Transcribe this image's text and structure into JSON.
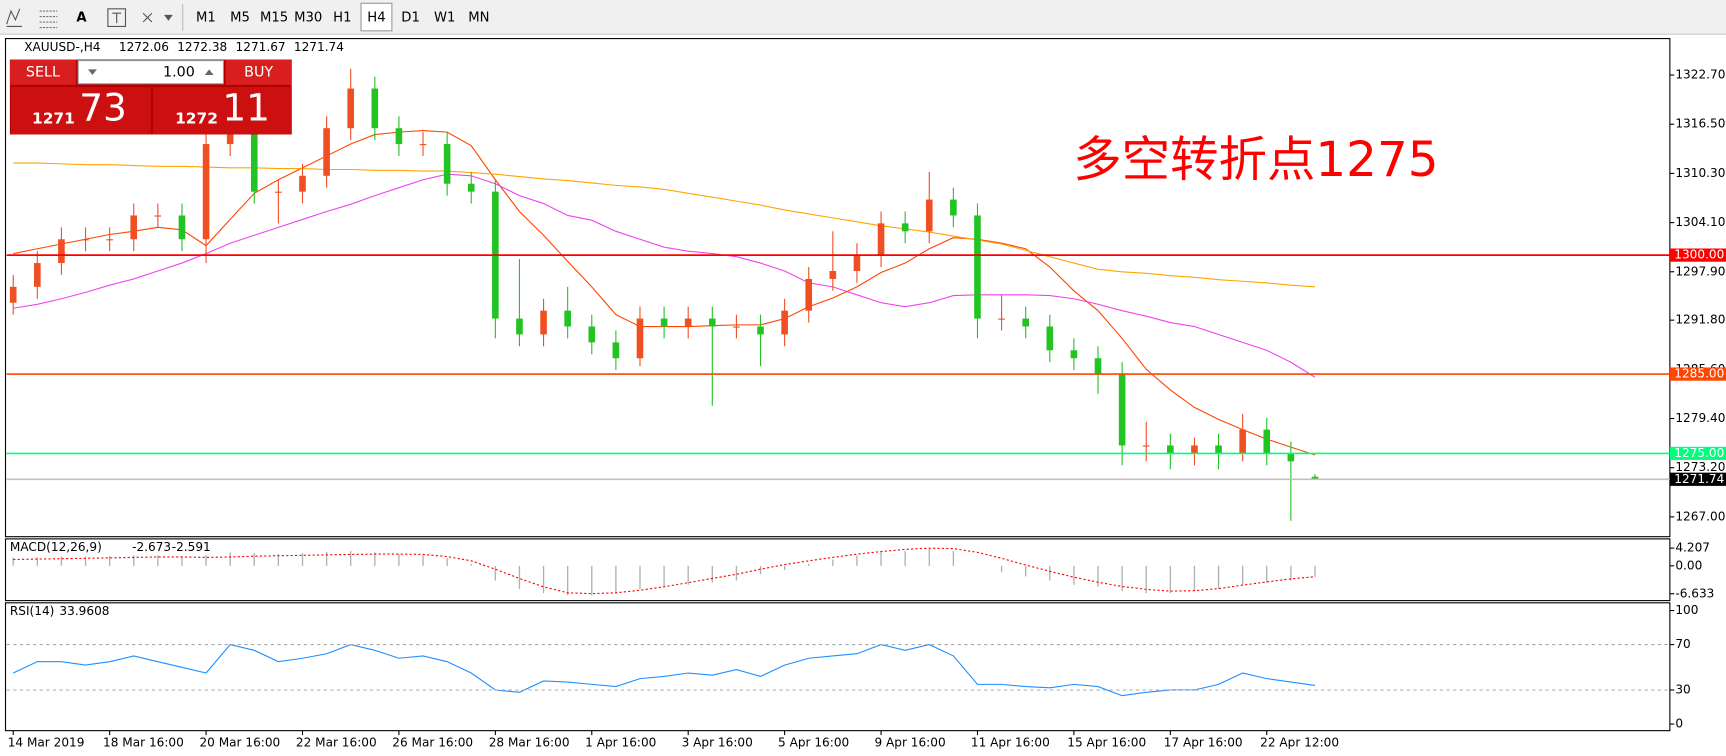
{
  "toolbar": {
    "timeframes": [
      "M1",
      "M5",
      "M15",
      "M30",
      "H1",
      "H4",
      "D1",
      "W1",
      "MN"
    ],
    "active": "H4",
    "tools": [
      "A"
    ]
  },
  "trade_panel": {
    "sell": "SELL",
    "buy": "BUY",
    "lot": "1.00",
    "sell_small": "1271",
    "sell_big": "73",
    "buy_small": "1272",
    "buy_big": "11"
  },
  "chart_data": {
    "type": "candlestick",
    "symbol": "XAUUSD-,H4",
    "annotation": "多空转折点1275",
    "x": [
      "14 Mar 2019",
      null,
      null,
      null,
      "18 Mar 16:00",
      null,
      null,
      null,
      "20 Mar 16:00",
      null,
      null,
      null,
      "22 Mar 16:00",
      null,
      null,
      null,
      "26 Mar 16:00",
      null,
      null,
      null,
      "28 Mar 16:00",
      null,
      null,
      null,
      "1 Apr 16:00",
      null,
      null,
      null,
      "3 Apr 16:00",
      null,
      null,
      null,
      "5 Apr 16:00",
      null,
      null,
      null,
      "9 Apr 16:00",
      null,
      null,
      null,
      "11 Apr 16:00",
      null,
      null,
      null,
      "15 Apr 16:00",
      null,
      null,
      null,
      "17 Apr 16:00",
      null,
      null,
      null,
      "22 Apr 12:00",
      null,
      null
    ],
    "open": [
      1294,
      1296,
      1299,
      1302,
      1302,
      1302,
      1305,
      1305,
      1302,
      1314,
      1316,
      1308,
      1308,
      1310,
      1316,
      1321,
      1316,
      1314,
      1314,
      1309,
      1308,
      1292,
      1290,
      1293,
      1291,
      1289,
      1287,
      1292,
      1291,
      1292,
      1291,
      1291,
      1290,
      1293,
      1297,
      1298,
      1300,
      1304,
      1303,
      1307,
      1305,
      1292,
      1292,
      1291,
      1288,
      1287,
      1285,
      1276,
      1276,
      1275,
      1276,
      1275,
      1278,
      1275,
      1272.06
    ],
    "high": [
      1297.5,
      1300.5,
      1303.5,
      1303.5,
      1303.5,
      1306.5,
      1306.5,
      1306.5,
      1315.5,
      1317.5,
      1317.5,
      1309.5,
      1311.5,
      1317.5,
      1323.5,
      1322.5,
      1317.5,
      1315.5,
      1315.5,
      1310.5,
      1309.5,
      1299.5,
      1294.5,
      1296,
      1292.5,
      1290.5,
      1293.5,
      1293.5,
      1293.5,
      1293.5,
      1292.5,
      1292.5,
      1294.5,
      1298.5,
      1303,
      1301.5,
      1305.5,
      1305.5,
      1310.5,
      1308.5,
      1306.5,
      1295,
      1293.5,
      1292.5,
      1289.5,
      1288.5,
      1286.5,
      1279,
      1277.5,
      1277,
      1277.5,
      1280,
      1279.5,
      1276.5,
      1272.38
    ],
    "low": [
      1292.5,
      1294.5,
      1297.5,
      1300.5,
      1300.5,
      1300.5,
      1303.5,
      1300.5,
      1299,
      1312.5,
      1306.5,
      1304,
      1306.5,
      1308.5,
      1314.5,
      1314.5,
      1312.5,
      1312.5,
      1307.5,
      1306.5,
      1289.5,
      1288.5,
      1288.5,
      1289.5,
      1287.5,
      1285.5,
      1286,
      1289.5,
      1289.5,
      1281,
      1289.5,
      1286,
      1288.5,
      1291.5,
      1295.5,
      1296.5,
      1298.5,
      1301.5,
      1301.5,
      1303.5,
      1289.5,
      1290.5,
      1289.5,
      1286.5,
      1285.5,
      1282.5,
      1273.5,
      1274,
      1273,
      1273.5,
      1273,
      1274,
      1273.5,
      1266.5,
      1271.67
    ],
    "close": [
      1296,
      1299,
      1302,
      1302,
      1302,
      1305,
      1305,
      1302,
      1314,
      1316,
      1308,
      1308,
      1310,
      1316,
      1321,
      1316,
      1314,
      1314,
      1309,
      1308,
      1292,
      1290,
      1293,
      1291,
      1289,
      1287,
      1292,
      1291,
      1292,
      1291,
      1291,
      1290,
      1293,
      1297,
      1298,
      1300,
      1304,
      1303,
      1307,
      1305,
      1292,
      1292,
      1291,
      1288,
      1287,
      1285,
      1276,
      1276,
      1275,
      1276,
      1275,
      1278,
      1275,
      1274,
      1271.74
    ],
    "up_color": "#f04e23",
    "down_color": "#22c322",
    "lines": [
      {
        "color": "#ff4500",
        "values": [
          1300.2,
          1300.8,
          1301.4,
          1302,
          1302.6,
          1303,
          1303.5,
          1303.2,
          1301.2,
          1304.5,
          1307.8,
          1309.5,
          1311,
          1312.5,
          1314,
          1315.2,
          1315.5,
          1315.7,
          1315.5,
          1313.8,
          1309.5,
          1305.5,
          1302.5,
          1299.2,
          1296,
          1292.5,
          1291,
          1291,
          1291,
          1291.1,
          1291.2,
          1291.2,
          1292,
          1293.5,
          1294.6,
          1296,
          1297.8,
          1299,
          1300.8,
          1302.2,
          1302,
          1301.5,
          1300.8,
          1298.5,
          1295.5,
          1293,
          1289.5,
          1285.6,
          1283,
          1280.8,
          1279.3,
          1278,
          1276.8,
          1275.8,
          1274.8
        ]
      },
      {
        "color": "#ee44ee",
        "values": [
          1293.3,
          1293.8,
          1294.5,
          1295.3,
          1296.2,
          1297,
          1298,
          1299,
          1300.2,
          1301.5,
          1302.5,
          1303.5,
          1304.5,
          1305.5,
          1306.4,
          1307.5,
          1308.5,
          1309.5,
          1310.2,
          1310,
          1309,
          1307.5,
          1306.5,
          1305,
          1304.4,
          1303,
          1302,
          1301,
          1300.5,
          1300.2,
          1299.8,
          1299,
          1298,
          1296.5,
          1296,
          1295,
          1294,
          1293.5,
          1294,
          1294.9,
          1295,
          1295,
          1295,
          1294.9,
          1294.5,
          1293.8,
          1293,
          1292.3,
          1291.5,
          1291,
          1290,
          1289,
          1288,
          1286.5,
          1284.6
        ]
      },
      {
        "color": "#ffa500",
        "values": [
          1311.6,
          1311.6,
          1311.5,
          1311.4,
          1311.4,
          1311.3,
          1311.2,
          1311.2,
          1311.1,
          1311,
          1311,
          1310.9,
          1310.9,
          1310.8,
          1310.8,
          1310.7,
          1310.7,
          1310.6,
          1310.6,
          1310.4,
          1310.2,
          1309.9,
          1309.6,
          1309.4,
          1309.1,
          1308.8,
          1308.6,
          1308.3,
          1307.8,
          1307.3,
          1306.8,
          1306.3,
          1305.7,
          1305.2,
          1304.7,
          1304.2,
          1303.7,
          1303.3,
          1302.9,
          1302.4,
          1301.9,
          1301.4,
          1300.6,
          1299.8,
          1299,
          1298.2,
          1297.9,
          1297.7,
          1297.4,
          1297.2,
          1296.9,
          1296.7,
          1296.5,
          1296.2,
          1296
        ]
      }
    ],
    "hlines": [
      {
        "value": 1300,
        "label": "1300.00",
        "color": "#ff0000",
        "box": "#ff0000"
      },
      {
        "value": 1285,
        "label": "1285.00",
        "color": "#ff4500",
        "box": "#ff4500"
      },
      {
        "value": 1275,
        "label": "1275.00",
        "color": "#00ff7f",
        "box": "#00ff7f"
      },
      {
        "value": 1271.74,
        "label": "1271.74",
        "color": "#c0c0c0",
        "box": "#000000"
      }
    ],
    "ylim": [
      1264.5,
      1327.3
    ],
    "yticks": [
      {
        "value": 1322.7,
        "label": "1322.70"
      },
      {
        "value": 1316.5,
        "label": "1316.50"
      },
      {
        "value": 1310.3,
        "label": "1310.30"
      },
      {
        "value": 1304.1,
        "label": "1304.10"
      },
      {
        "value": 1297.9,
        "label": "1297.90"
      },
      {
        "value": 1291.8,
        "label": "1291.80"
      },
      {
        "value": 1285.6,
        "label": "1285.60"
      },
      {
        "value": 1279.4,
        "label": "1279.40"
      },
      {
        "value": 1273.2,
        "label": "1273.20"
      },
      {
        "value": 1267,
        "label": "1267.00"
      }
    ],
    "macd": {
      "label": "MACD(12,26,9)",
      "color": "#b0b0b0",
      "signal_color": "#ff0000",
      "values": [
        2,
        2,
        2.2,
        2.2,
        2.3,
        2.5,
        2.5,
        2.3,
        2.6,
        3.2,
        3,
        2.8,
        3,
        3.3,
        3.5,
        3.2,
        2.8,
        2.5,
        1.8,
        0.5,
        -3.5,
        -5.5,
        -6.5,
        -7,
        -7,
        -6.5,
        -5.5,
        -5,
        -4.5,
        -4,
        -3.5,
        -2,
        -1,
        0.5,
        1.5,
        2.5,
        3.5,
        3.5,
        4,
        3.5,
        0,
        -1.5,
        -2.5,
        -3.5,
        -4.5,
        -5,
        -6,
        -6.5,
        -6.5,
        -6,
        -5.5,
        -4.5,
        -4,
        -3.5,
        -2.673
      ],
      "signal": [
        1.5,
        1.6,
        1.7,
        1.8,
        1.9,
        2,
        2.1,
        2.1,
        2,
        2.1,
        2.3,
        2.4,
        2.5,
        2.6,
        2.7,
        2.8,
        2.8,
        2.7,
        2.2,
        1.2,
        -0.8,
        -3,
        -5,
        -6.4,
        -6.6,
        -6.4,
        -5.8,
        -5,
        -4,
        -3,
        -2,
        -0.8,
        0.3,
        1.2,
        2,
        2.8,
        3.4,
        3.9,
        4.2,
        4.1,
        3.2,
        1.8,
        0.2,
        -1.3,
        -2.7,
        -3.9,
        -4.9,
        -5.6,
        -6,
        -5.9,
        -5.4,
        -4.6,
        -3.8,
        -3.1,
        -2.591
      ],
      "ylim": [
        -8.26,
        6.4
      ],
      "yticks": [
        4.207,
        {
          "value": 0,
          "label": "0.00"
        },
        -6.633
      ]
    },
    "rsi": {
      "label": "RSI(14)",
      "color": "#1e90ff",
      "values": [
        45,
        55,
        55,
        52,
        55,
        60,
        55,
        50,
        45,
        70,
        65,
        55,
        58,
        62,
        70,
        65,
        58,
        60,
        55,
        45,
        30,
        28,
        38,
        37,
        35,
        33,
        40,
        42,
        45,
        43,
        48,
        42,
        52,
        58,
        60,
        62,
        70,
        65,
        70,
        60,
        35,
        35,
        33,
        32,
        35,
        33,
        25,
        28,
        30,
        30,
        35,
        45,
        40,
        37,
        33.9608
      ],
      "ylim": [
        -5.8,
        106.8
      ],
      "yticks": [
        100,
        70,
        30,
        0
      ],
      "levels": [
        70,
        30
      ]
    }
  }
}
